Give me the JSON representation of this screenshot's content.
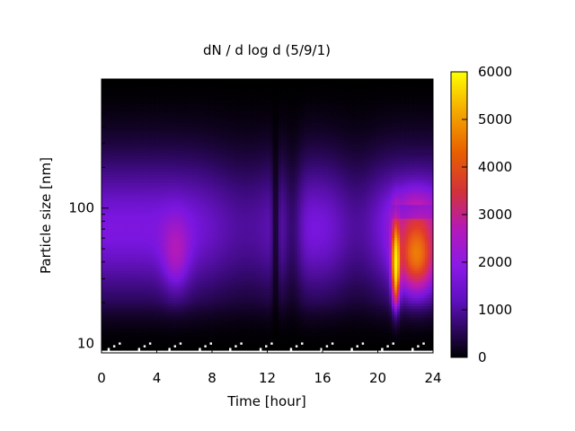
{
  "chart_data": {
    "type": "heatmap",
    "title": "dN / d log d (5/9/1)",
    "xlabel": "Time [hour]",
    "ylabel": "Particle size [nm]",
    "x_ticks": [
      "0",
      "4",
      "8",
      "12",
      "16",
      "20",
      "24"
    ],
    "x_tick_values": [
      0,
      4,
      8,
      12,
      16,
      20,
      24
    ],
    "xlim": [
      0,
      24
    ],
    "y_scale": "log",
    "ylim": [
      8.5,
      900
    ],
    "y_ticks": [
      "10",
      "100"
    ],
    "y_tick_values": [
      10,
      100
    ],
    "colorbar": {
      "range": [
        0,
        6000
      ],
      "ticks": [
        "0",
        "1000",
        "2000",
        "3000",
        "4000",
        "5000",
        "6000"
      ],
      "tick_values": [
        0,
        1000,
        2000,
        3000,
        4000,
        5000,
        6000
      ],
      "colormap": [
        "#000000",
        "#3a0a7a",
        "#7a16e0",
        "#c01bb0",
        "#e23a2a",
        "#f08a00",
        "#f6d000",
        "#ffff00"
      ]
    },
    "features": [
      {
        "hours": [
          0,
          8
        ],
        "size_nm": [
          15,
          600
        ],
        "level": 1700,
        "peak_level": 2600,
        "peak_hour": 5.4,
        "peak_size_nm": 40
      },
      {
        "hours": [
          12.5,
          13.0
        ],
        "size_nm": [
          9,
          900
        ],
        "level": 200
      },
      {
        "hours": [
          21.0,
          21.6
        ],
        "size_nm": [
          15,
          110
        ],
        "level": 5000
      },
      {
        "hours": [
          21.6,
          24
        ],
        "size_nm": [
          20,
          110
        ],
        "level": 3800
      }
    ]
  }
}
